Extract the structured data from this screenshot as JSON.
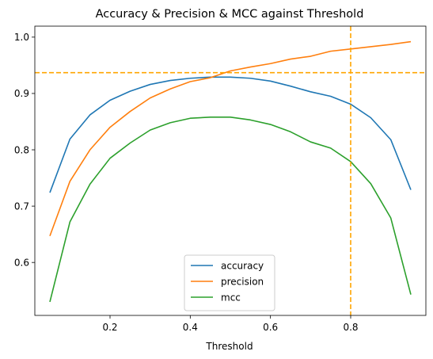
{
  "chart_data": {
    "type": "line",
    "title": "Accuracy & Precision & MCC against Threshold",
    "xlabel": "Threshold",
    "ylabel": "",
    "xlim": [
      0.0125,
      0.9875
    ],
    "ylim": [
      0.506,
      1.0195
    ],
    "xticks": [
      0.2,
      0.4,
      0.6,
      0.8
    ],
    "xtick_labels": [
      "0.2",
      "0.4",
      "0.6",
      "0.8"
    ],
    "yticks": [
      0.6,
      0.7,
      0.8,
      0.9,
      1.0
    ],
    "ytick_labels": [
      "0.6",
      "0.7",
      "0.8",
      "0.9",
      "1.0"
    ],
    "grid": false,
    "legend_position": "lower-center",
    "x": [
      0.05,
      0.1,
      0.15,
      0.2,
      0.25,
      0.3,
      0.35,
      0.4,
      0.45,
      0.5,
      0.55,
      0.6,
      0.65,
      0.7,
      0.75,
      0.8,
      0.85,
      0.9,
      0.95
    ],
    "series": [
      {
        "name": "accuracy",
        "color": "#1f77b4",
        "values": [
          0.724,
          0.819,
          0.862,
          0.888,
          0.904,
          0.916,
          0.923,
          0.927,
          0.929,
          0.929,
          0.927,
          0.922,
          0.913,
          0.903,
          0.895,
          0.881,
          0.857,
          0.818,
          0.729
        ]
      },
      {
        "name": "precision",
        "color": "#ff7f0e",
        "values": [
          0.647,
          0.744,
          0.8,
          0.84,
          0.868,
          0.892,
          0.908,
          0.921,
          0.928,
          0.94,
          0.947,
          0.953,
          0.961,
          0.966,
          0.975,
          0.979,
          0.983,
          0.987,
          0.992
        ]
      },
      {
        "name": "mcc",
        "color": "#2ca02c",
        "values": [
          0.53,
          0.672,
          0.739,
          0.785,
          0.812,
          0.835,
          0.848,
          0.856,
          0.858,
          0.858,
          0.853,
          0.845,
          0.832,
          0.814,
          0.803,
          0.779,
          0.74,
          0.679,
          0.543
        ]
      }
    ],
    "reference_lines": [
      {
        "orientation": "horizontal",
        "value": 0.937,
        "color": "#ffa500",
        "style": "dashed"
      },
      {
        "orientation": "vertical",
        "value": 0.8,
        "color": "#ffa500",
        "style": "dashed"
      }
    ]
  }
}
